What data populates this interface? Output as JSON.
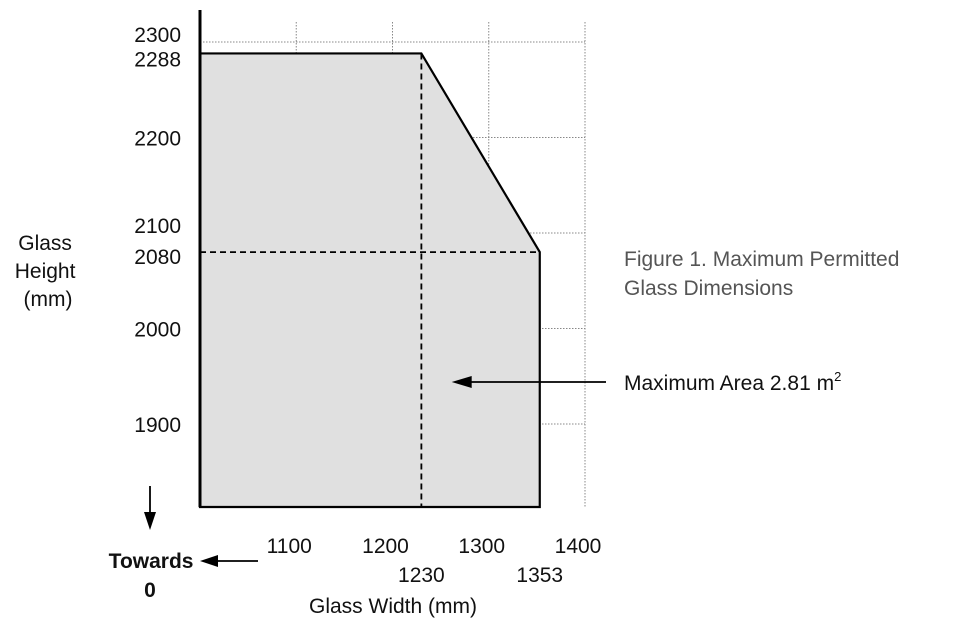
{
  "chart_data": {
    "type": "area",
    "title": "Figure 1. Maximum Permitted Glass Dimensions",
    "xlabel": "Glass Width (mm)",
    "ylabel": "Glass Height (mm)",
    "ylabel_lines": [
      "Glass",
      "Height",
      "(mm)"
    ],
    "title_lines": [
      "Figure 1. Maximum Permitted",
      "Glass Dimensions"
    ],
    "xlim": [
      1000,
      1400
    ],
    "ylim": [
      1810,
      2330
    ],
    "grid": true,
    "x_grid": [
      1100,
      1200,
      1300,
      1400
    ],
    "y_grid": [
      1900,
      2000,
      2100,
      2200,
      2300
    ],
    "x_ticks": [
      "1100",
      "1200",
      "1300",
      "1400"
    ],
    "y_ticks": [
      "2300",
      "2288",
      "2200",
      "2100",
      "2080",
      "2000",
      "1900"
    ],
    "x_extra_ticks": [
      "1230",
      "1353"
    ],
    "envelope": {
      "x": [
        1000,
        1230,
        1353,
        1353,
        1000
      ],
      "y": [
        2288,
        2288,
        2080,
        1810,
        1810
      ],
      "fill": "#e0e0e0"
    },
    "reference_lines": [
      {
        "axis": "x",
        "value": 1230
      },
      {
        "axis": "y",
        "value": 2080
      }
    ],
    "annotations": {
      "area": {
        "text": "Maximum Area 2.81 m",
        "sup": "2",
        "point": [
          1275,
          1950
        ]
      },
      "towards_zero": {
        "lines": [
          "Towards",
          "0"
        ]
      }
    },
    "colors": {
      "line": "#000000",
      "grid": "#888888",
      "text": "#111111",
      "caption": "#555555"
    }
  }
}
